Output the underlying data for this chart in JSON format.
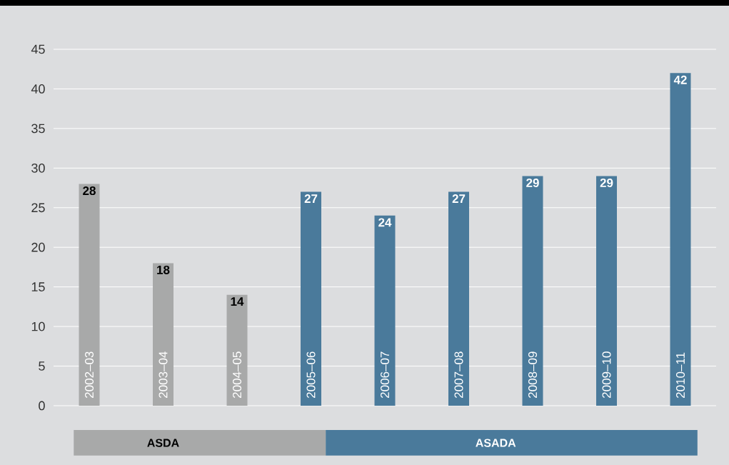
{
  "chart_data": {
    "type": "bar",
    "categories": [
      "2002–03",
      "2003–04",
      "2004–05",
      "2005–06",
      "2006–07",
      "2007–08",
      "2008–09",
      "2009–10",
      "2010–11"
    ],
    "values": [
      28,
      18,
      14,
      27,
      24,
      27,
      29,
      29,
      42
    ],
    "colors": [
      "#a8a9a9",
      "#a8a9a9",
      "#a8a9a9",
      "#4a7a9b",
      "#4a7a9b",
      "#4a7a9b",
      "#4a7a9b",
      "#4a7a9b",
      "#4a7a9b"
    ],
    "ylim": [
      0,
      45
    ],
    "yticks": [
      0,
      5,
      10,
      15,
      20,
      25,
      30,
      35,
      40,
      45
    ],
    "grid": "y",
    "data_labels": true,
    "annotations": [
      "ASDA",
      "ASADA"
    ]
  }
}
